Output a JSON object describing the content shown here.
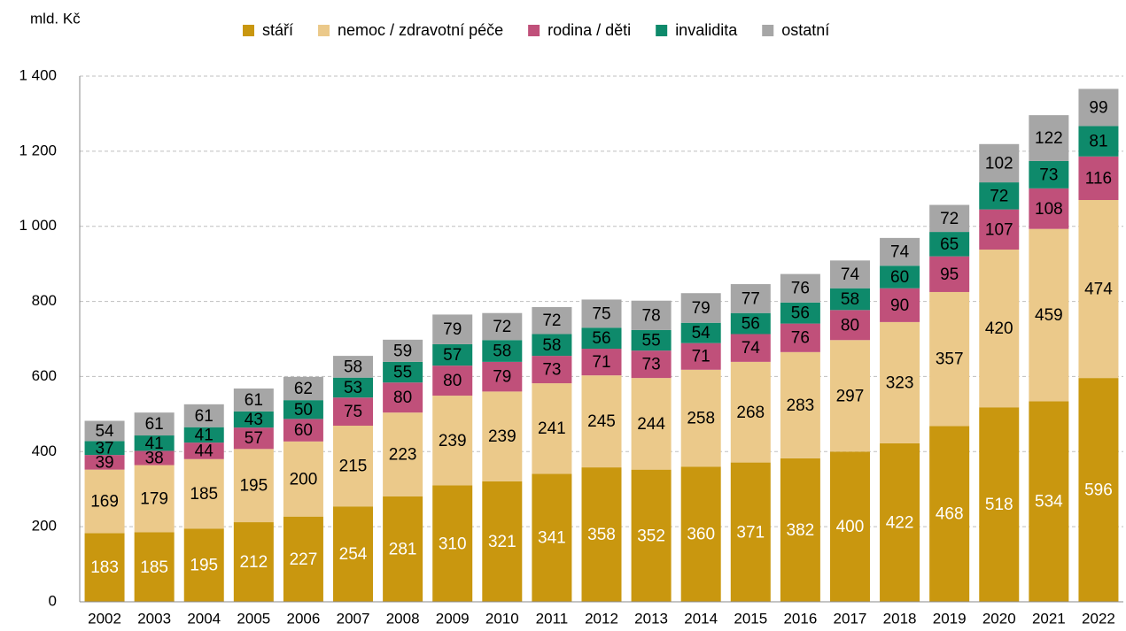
{
  "chart_data": {
    "type": "stacked_bar",
    "y_label": "mld. Kč",
    "categories": [
      "2002",
      "2003",
      "2004",
      "2005",
      "2006",
      "2007",
      "2008",
      "2009",
      "2010",
      "2011",
      "2012",
      "2013",
      "2014",
      "2015",
      "2016",
      "2017",
      "2018",
      "2019",
      "2020",
      "2021",
      "2022"
    ],
    "series": [
      {
        "name": "stáří",
        "color": "#c9970f",
        "values": [
          183,
          185,
          195,
          212,
          227,
          254,
          281,
          310,
          321,
          341,
          358,
          352,
          360,
          371,
          382,
          400,
          422,
          468,
          518,
          534,
          596
        ]
      },
      {
        "name": "nemoc / zdravotní péče",
        "color": "#ebc98a",
        "values": [
          169,
          179,
          185,
          195,
          200,
          215,
          223,
          239,
          239,
          241,
          245,
          244,
          258,
          268,
          283,
          297,
          323,
          357,
          420,
          459,
          474
        ]
      },
      {
        "name": "rodina / děti",
        "color": "#c0507a",
        "values": [
          39,
          38,
          44,
          57,
          60,
          75,
          80,
          80,
          79,
          73,
          71,
          73,
          71,
          74,
          76,
          80,
          90,
          95,
          107,
          108,
          116
        ]
      },
      {
        "name": "invalidita",
        "color": "#0e8a6b",
        "values": [
          37,
          41,
          41,
          43,
          50,
          53,
          55,
          57,
          58,
          58,
          56,
          55,
          54,
          56,
          56,
          58,
          60,
          65,
          72,
          73,
          81
        ]
      },
      {
        "name": "ostatní",
        "color": "#a6a6a6",
        "values": [
          54,
          61,
          61,
          61,
          62,
          58,
          59,
          79,
          72,
          72,
          75,
          78,
          79,
          77,
          76,
          74,
          74,
          72,
          102,
          122,
          99
        ]
      }
    ],
    "ylim": [
      0,
      1400
    ],
    "yticks": [
      0,
      200,
      400,
      600,
      800,
      {
        "value": 1000,
        "label": "1 000"
      },
      {
        "value": 1200,
        "label": "1 200"
      },
      {
        "value": 1400,
        "label": "1 400"
      }
    ],
    "grid": true
  }
}
